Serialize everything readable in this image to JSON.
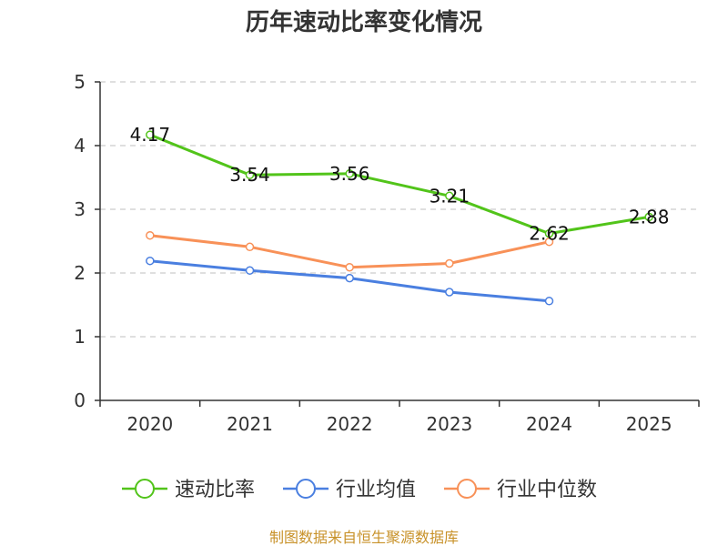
{
  "chart_data": {
    "type": "line",
    "title": "历年速动比率变化情况",
    "categories": [
      "2020",
      "2021",
      "2022",
      "2023",
      "2024",
      "2025"
    ],
    "ylim": [
      0,
      5
    ],
    "yticks": [
      0,
      1,
      2,
      3,
      4,
      5
    ],
    "grid": true,
    "legend_position": "bottom",
    "series": [
      {
        "name": "速动比率",
        "color": "#52c41a",
        "show_labels": true,
        "values": [
          4.17,
          3.54,
          3.56,
          3.21,
          2.62,
          2.88
        ]
      },
      {
        "name": "行业均值",
        "color": "#4a7fe0",
        "show_labels": false,
        "values": [
          2.19,
          2.04,
          1.92,
          1.7,
          1.56,
          null
        ]
      },
      {
        "name": "行业中位数",
        "color": "#f89158",
        "show_labels": false,
        "values": [
          2.59,
          2.41,
          2.09,
          2.15,
          2.49,
          null
        ]
      }
    ]
  },
  "footer": {
    "source": "制图数据来自恒生聚源数据库",
    "color": "#c8922a"
  }
}
